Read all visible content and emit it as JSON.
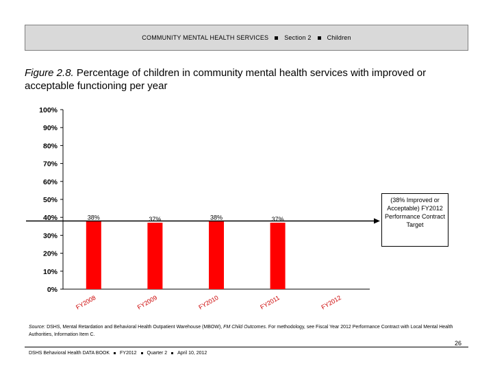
{
  "header": {
    "section_title": "COMMUNITY MENTAL HEALTH SERVICES",
    "section": "Section 2",
    "topic": "Children"
  },
  "figure": {
    "label": "Figure 2.8.",
    "title": "Percentage of children in community mental health services with improved or acceptable functioning per year"
  },
  "chart_data": {
    "type": "bar",
    "categories": [
      "FY2008",
      "FY2009",
      "FY2010",
      "FY2011",
      "FY2012"
    ],
    "values": [
      38,
      37,
      38,
      37,
      null
    ],
    "data_labels": [
      "38%",
      "37%",
      "38%",
      "37%",
      ""
    ],
    "y_ticks": [
      "0%",
      "10%",
      "20%",
      "30%",
      "40%",
      "50%",
      "60%",
      "70%",
      "80%",
      "90%",
      "100%"
    ],
    "ylim": [
      0,
      100
    ],
    "bar_color": "#ff0000",
    "target_value": 38,
    "target_label": "(38% Improved or Acceptable) FY2012 Performance Contract Target",
    "grid": false
  },
  "source": {
    "label": "Source:",
    "text": "DSHS, Mental Retardation and Behavioral Health Outpatient Warehouse (MBOW), ",
    "report": "FM Child Outcomes",
    "text2": ". For methodology, see Fiscal Year 2012 Performance Contract with Local Mental Health Authorities, Information Item C."
  },
  "page_number": "26",
  "footer": {
    "book": "DSHS Behavioral Health DATA BOOK",
    "year": "FY2012",
    "quarter": "Quarter 2",
    "date": "April 10, 2012"
  }
}
